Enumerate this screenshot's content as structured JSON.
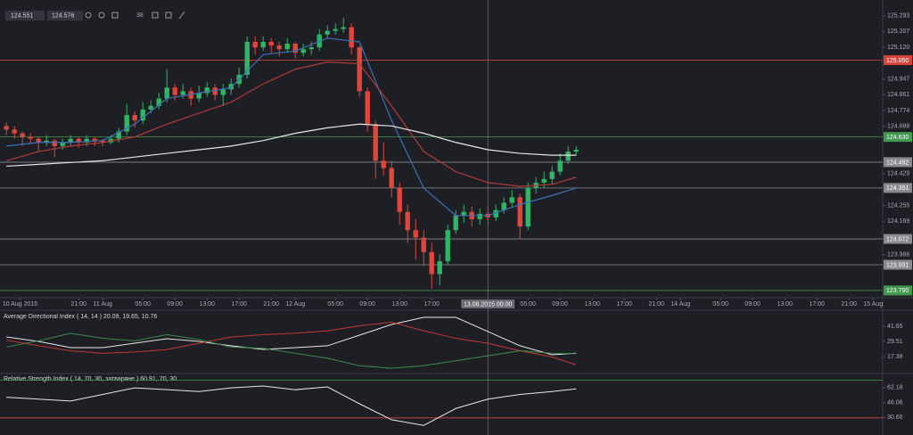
{
  "toolbar": {
    "prices": [
      124.551,
      124.576
    ],
    "zoom": "38"
  },
  "chart_data": [
    {
      "type": "candlestick",
      "xlim": [
        11.2,
        121.2
      ],
      "xticks": [
        {
          "value": 13.7,
          "label": "10 Aug 2015"
        },
        {
          "value": 21,
          "label": "21:00"
        },
        {
          "value": 24,
          "label": "11 Aug"
        },
        {
          "value": 29,
          "label": "05:00"
        },
        {
          "value": 33,
          "label": "09:00"
        },
        {
          "value": 37,
          "label": "13:00"
        },
        {
          "value": 41,
          "label": "17:00"
        },
        {
          "value": 45,
          "label": "21:00"
        },
        {
          "value": 48,
          "label": "12 Aug"
        },
        {
          "value": 53,
          "label": "05:00"
        },
        {
          "value": 57,
          "label": "09:00"
        },
        {
          "value": 61,
          "label": "13:00"
        },
        {
          "value": 65,
          "label": "17:00"
        },
        {
          "value": 77,
          "label": "05:00"
        },
        {
          "value": 81,
          "label": "09:00"
        },
        {
          "value": 85,
          "label": "13:00"
        },
        {
          "value": 89,
          "label": "17:00"
        },
        {
          "value": 93,
          "label": "21:00"
        },
        {
          "value": 96,
          "label": "14 Aug"
        },
        {
          "value": 101,
          "label": "05:00"
        },
        {
          "value": 105,
          "label": "09:00"
        },
        {
          "value": 109,
          "label": "13:00"
        },
        {
          "value": 113,
          "label": "17:00"
        },
        {
          "value": 117,
          "label": "21:00"
        },
        {
          "value": 120,
          "label": "15 Aug"
        }
      ],
      "crosshair": {
        "value": 72,
        "label": "13.08.2015 00:00"
      },
      "ylim": [
        123.77,
        125.34
      ],
      "yticks": [
        {
          "value": 125.293,
          "label": "125.293"
        },
        {
          "value": 125.207,
          "label": "125.207"
        },
        {
          "value": 125.12,
          "label": "125.120"
        },
        {
          "value": 124.947,
          "label": "124.947"
        },
        {
          "value": 124.861,
          "label": "124.861"
        },
        {
          "value": 124.774,
          "label": "124.774"
        },
        {
          "value": 124.688,
          "label": "124.688"
        },
        {
          "value": 124.429,
          "label": "124.429"
        },
        {
          "value": 124.255,
          "label": "124.255"
        },
        {
          "value": 124.169,
          "label": "124.169"
        },
        {
          "value": 123.986,
          "label": "123.986"
        }
      ],
      "levels": [
        {
          "value": 125.05,
          "label": "125.050",
          "color": "#d9443a"
        },
        {
          "value": 124.63,
          "label": "124.630",
          "color": "#3f9c4e"
        },
        {
          "value": 124.492,
          "label": "124.492",
          "color": "#8a8b90"
        },
        {
          "value": 124.351,
          "label": "124.351",
          "color": "#8a8b90"
        },
        {
          "value": 124.072,
          "label": "124.072",
          "color": "#8a8b90"
        },
        {
          "value": 123.931,
          "label": "123.931",
          "color": "#8a8b90"
        },
        {
          "value": 123.79,
          "label": "123.790",
          "color": "#3f9c4e"
        }
      ],
      "up_color": "#2fb565",
      "down_color": "#e0463c",
      "x": [
        12,
        13,
        14,
        15,
        16,
        17,
        18,
        19,
        20,
        21,
        22,
        23,
        24,
        25,
        26,
        27,
        28,
        29,
        30,
        31,
        32,
        33,
        34,
        35,
        36,
        37,
        38,
        39,
        40,
        41,
        42,
        43,
        44,
        45,
        46,
        47,
        48,
        49,
        50,
        51,
        52,
        53,
        54,
        55,
        56,
        57,
        58,
        59,
        60,
        61,
        62,
        63,
        64,
        65,
        66,
        67,
        68,
        69,
        70,
        71,
        72,
        73,
        74,
        75,
        76,
        77,
        78,
        79,
        80,
        81,
        82,
        83
      ],
      "ohlc": [
        [
          124.69,
          124.71,
          124.64,
          124.67
        ],
        [
          124.67,
          124.69,
          124.62,
          124.65
        ],
        [
          124.65,
          124.66,
          124.58,
          124.63
        ],
        [
          124.63,
          124.65,
          124.59,
          124.62
        ],
        [
          124.62,
          124.63,
          124.55,
          124.6
        ],
        [
          124.6,
          124.64,
          124.58,
          124.61
        ],
        [
          124.61,
          124.62,
          124.52,
          124.58
        ],
        [
          124.58,
          124.62,
          124.56,
          124.6
        ],
        [
          124.6,
          124.64,
          124.58,
          124.62
        ],
        [
          124.62,
          124.63,
          124.57,
          124.6
        ],
        [
          124.6,
          124.64,
          124.58,
          124.62
        ],
        [
          124.62,
          124.63,
          124.58,
          124.61
        ],
        [
          124.61,
          124.62,
          124.58,
          124.6
        ],
        [
          124.6,
          124.64,
          124.59,
          124.62
        ],
        [
          124.62,
          124.68,
          124.6,
          124.66
        ],
        [
          124.66,
          124.81,
          124.64,
          124.75
        ],
        [
          124.75,
          124.77,
          124.68,
          124.72
        ],
        [
          124.72,
          124.82,
          124.7,
          124.78
        ],
        [
          124.78,
          124.83,
          124.76,
          124.8
        ],
        [
          124.8,
          124.87,
          124.78,
          124.84
        ],
        [
          124.84,
          125.0,
          124.82,
          124.9
        ],
        [
          124.9,
          124.92,
          124.83,
          124.86
        ],
        [
          124.86,
          124.92,
          124.84,
          124.88
        ],
        [
          124.88,
          124.9,
          124.8,
          124.84
        ],
        [
          124.84,
          124.91,
          124.82,
          124.87
        ],
        [
          124.87,
          124.93,
          124.85,
          124.9
        ],
        [
          124.9,
          124.92,
          124.83,
          124.86
        ],
        [
          124.86,
          124.92,
          124.8,
          124.89
        ],
        [
          124.89,
          124.95,
          124.86,
          124.92
        ],
        [
          124.92,
          125.01,
          124.9,
          124.97
        ],
        [
          124.97,
          125.18,
          124.95,
          125.15
        ],
        [
          125.15,
          125.18,
          125.08,
          125.12
        ],
        [
          125.12,
          125.18,
          125.1,
          125.15
        ],
        [
          125.15,
          125.17,
          125.09,
          125.13
        ],
        [
          125.13,
          125.15,
          125.07,
          125.11
        ],
        [
          125.11,
          125.17,
          125.09,
          125.14
        ],
        [
          125.14,
          125.15,
          125.06,
          125.09
        ],
        [
          125.09,
          125.14,
          125.07,
          125.11
        ],
        [
          125.11,
          125.15,
          125.08,
          125.12
        ],
        [
          125.12,
          125.22,
          125.1,
          125.19
        ],
        [
          125.19,
          125.24,
          125.17,
          125.21
        ],
        [
          125.21,
          125.25,
          125.19,
          125.22
        ],
        [
          125.22,
          125.28,
          125.2,
          125.23
        ],
        [
          125.23,
          125.25,
          125.08,
          125.12
        ],
        [
          125.12,
          125.13,
          124.85,
          124.88
        ],
        [
          124.88,
          124.9,
          124.66,
          124.7
        ],
        [
          124.7,
          124.72,
          124.4,
          124.5
        ],
        [
          124.5,
          124.6,
          124.42,
          124.46
        ],
        [
          124.46,
          124.5,
          124.3,
          124.35
        ],
        [
          124.35,
          124.38,
          124.15,
          124.22
        ],
        [
          124.22,
          124.26,
          124.05,
          124.12
        ],
        [
          124.12,
          124.18,
          123.96,
          124.08
        ],
        [
          124.08,
          124.12,
          123.92,
          124.0
        ],
        [
          124.0,
          124.05,
          123.8,
          123.88
        ],
        [
          123.88,
          123.99,
          123.82,
          123.95
        ],
        [
          123.95,
          124.15,
          123.93,
          124.12
        ],
        [
          124.12,
          124.23,
          124.1,
          124.2
        ],
        [
          124.2,
          124.26,
          124.16,
          124.22
        ],
        [
          124.22,
          124.25,
          124.14,
          124.18
        ],
        [
          124.18,
          124.24,
          124.15,
          124.21
        ],
        [
          124.21,
          124.24,
          124.16,
          124.19
        ],
        [
          124.19,
          124.26,
          124.17,
          124.23
        ],
        [
          124.23,
          124.3,
          124.21,
          124.27
        ],
        [
          124.27,
          124.34,
          124.25,
          124.3
        ],
        [
          124.3,
          124.32,
          124.07,
          124.14
        ],
        [
          124.14,
          124.38,
          124.12,
          124.35
        ],
        [
          124.35,
          124.41,
          124.32,
          124.38
        ],
        [
          124.38,
          124.44,
          124.35,
          124.4
        ],
        [
          124.4,
          124.47,
          124.37,
          124.44
        ],
        [
          124.44,
          124.54,
          124.42,
          124.5
        ],
        [
          124.5,
          124.58,
          124.48,
          124.55
        ],
        [
          124.55,
          124.58,
          124.53,
          124.56
        ]
      ],
      "overlay_x": [
        12,
        16,
        20,
        24,
        28,
        32,
        36,
        40,
        44,
        48,
        52,
        56,
        60,
        64,
        68,
        72,
        76,
        80,
        83
      ],
      "overlays": [
        {
          "color": "#3d6fb6",
          "values": [
            124.58,
            124.6,
            124.6,
            124.61,
            124.7,
            124.84,
            124.87,
            124.9,
            125.08,
            125.1,
            125.17,
            125.15,
            124.72,
            124.35,
            124.2,
            124.2,
            124.26,
            124.31,
            124.35
          ]
        },
        {
          "color": "#b03a36",
          "values": [
            124.5,
            124.55,
            124.58,
            124.6,
            124.63,
            124.7,
            124.76,
            124.82,
            124.92,
            125.0,
            125.04,
            125.03,
            124.8,
            124.55,
            124.44,
            124.38,
            124.36,
            124.37,
            124.41
          ]
        },
        {
          "color": "#e6e6e6",
          "values": [
            124.47,
            124.48,
            124.49,
            124.5,
            124.52,
            124.54,
            124.56,
            124.58,
            124.61,
            124.65,
            124.68,
            124.7,
            124.69,
            124.65,
            124.6,
            124.56,
            124.54,
            124.53,
            124.53
          ]
        }
      ]
    },
    {
      "type": "line",
      "title": "Average Directional Index ( 14, 14 ) 20.09, 19.65, 10.76",
      "xlim": [
        11.2,
        121.2
      ],
      "x": [
        12,
        16,
        20,
        24,
        28,
        32,
        36,
        40,
        44,
        48,
        52,
        56,
        60,
        64,
        68,
        72,
        76,
        80,
        83
      ],
      "ylim": [
        4.5,
        53.1
      ],
      "yticks": [
        41.65,
        29.51,
        17.38
      ],
      "series": [
        {
          "color": "#e8e8e8",
          "values": [
            33.1,
            29.5,
            24.5,
            24.5,
            28.1,
            31.7,
            29.5,
            26.0,
            23.1,
            24.5,
            26.0,
            34.5,
            43.1,
            48.8,
            48.8,
            37.4,
            26.0,
            18.8,
            20.09
          ]
        },
        {
          "color": "#c0392f",
          "values": [
            30.6,
            26,
            22,
            20,
            21,
            23,
            28,
            33,
            35,
            36,
            38,
            42,
            45,
            38,
            32,
            28,
            22,
            17,
            10.76
          ]
        },
        {
          "color": "#3e8e4c",
          "values": [
            25,
            30,
            36,
            32,
            30,
            35,
            31,
            25,
            24,
            20,
            16,
            10,
            8,
            10,
            14,
            18,
            22,
            20,
            19.65
          ]
        }
      ]
    },
    {
      "type": "line",
      "title": "Relative Strength Index ( 14, 70, 30, затваряне ) 60.91, 70, 30",
      "xlim": [
        11.2,
        121.2
      ],
      "x": [
        12,
        16,
        20,
        24,
        28,
        32,
        36,
        40,
        44,
        48,
        52,
        56,
        60,
        64,
        68,
        72,
        76,
        80,
        83
      ],
      "ylim": [
        13.7,
        76.3
      ],
      "yticks": [
        62.18,
        46.06,
        30.66
      ],
      "levels": [
        {
          "value": 70,
          "color": "#3f9c4e"
        },
        {
          "value": 30,
          "color": "#d9443a"
        }
      ],
      "series": [
        {
          "color": "#e8e8e8",
          "values": [
            52,
            50,
            48,
            55,
            62,
            60,
            58,
            62,
            64,
            60,
            63,
            45,
            28,
            22,
            40,
            50,
            55,
            58,
            60.91
          ]
        }
      ]
    }
  ]
}
